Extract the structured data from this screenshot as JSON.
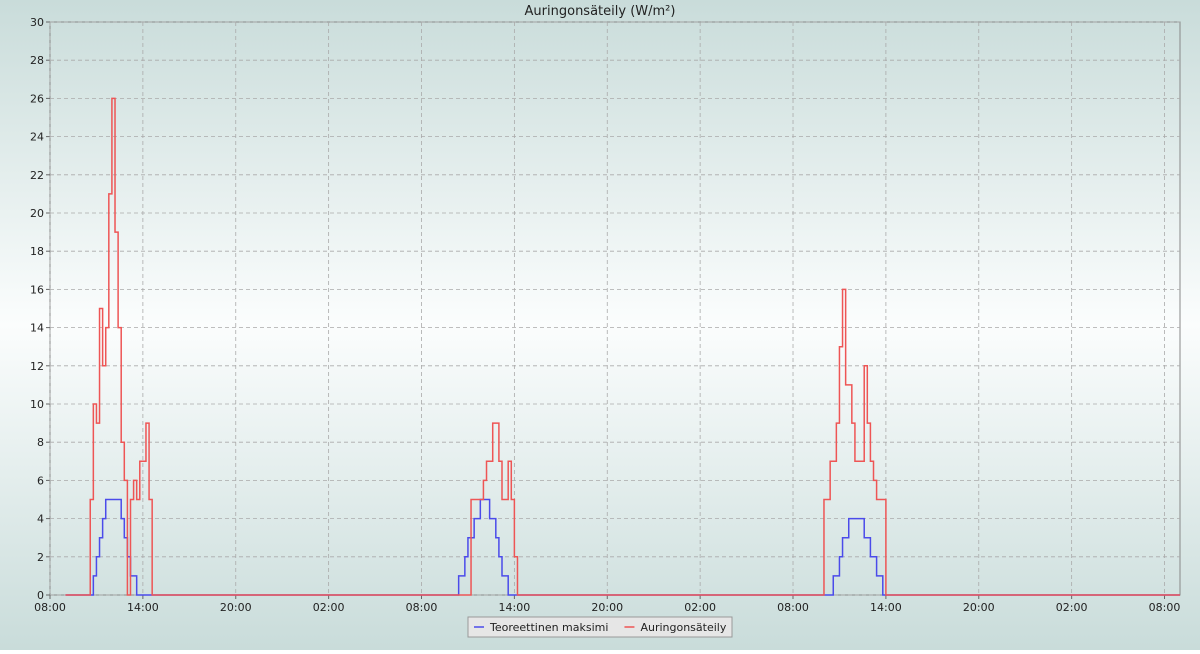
{
  "chart_data": {
    "type": "step-line",
    "title": "Auringonsäteily (W/m²)",
    "x": [
      1,
      2.4,
      2.6,
      2.8,
      3.0,
      3.2,
      3.4,
      3.6,
      3.8,
      4.0,
      4.2,
      4.4,
      4.6,
      4.8,
      5.0,
      5.2,
      5.4,
      5.6,
      5.8,
      6.0,
      6.2,
      6.4,
      6.6,
      26.2,
      26.4,
      26.6,
      26.8,
      27.0,
      27.2,
      27.4,
      27.6,
      27.8,
      28.0,
      28.2,
      28.4,
      28.6,
      28.8,
      29.0,
      29.2,
      29.4,
      29.6,
      29.8,
      30.0,
      30.2,
      49.8,
      50.0,
      50.2,
      50.4,
      50.6,
      50.8,
      51.0,
      51.2,
      51.4,
      51.6,
      51.8,
      52.0,
      52.2,
      52.4,
      52.6,
      52.8,
      53.0,
      53.2,
      53.4,
      53.6,
      53.8,
      54.0,
      73
    ],
    "series": [
      {
        "name": "Teoreettinen maksimi",
        "color": "#4b4bea",
        "values": [
          0,
          0,
          0,
          1,
          2,
          3,
          4,
          5,
          5,
          5,
          5,
          5,
          4,
          3,
          2,
          1,
          1,
          0,
          0,
          0,
          0,
          0,
          0,
          0,
          1,
          1,
          2,
          3,
          3,
          4,
          4,
          5,
          5,
          5,
          4,
          4,
          3,
          2,
          1,
          1,
          0,
          0,
          0,
          0,
          0,
          0,
          0,
          0,
          1,
          1,
          2,
          3,
          3,
          4,
          4,
          4,
          4,
          4,
          3,
          3,
          2,
          2,
          1,
          1,
          0,
          0,
          0
        ]
      },
      {
        "name": "Auringonsäteily",
        "color": "#ee5555",
        "values": [
          0,
          0,
          5,
          10,
          9,
          15,
          12,
          14,
          21,
          26,
          19,
          14,
          8,
          6,
          0,
          5,
          6,
          5,
          7,
          7,
          9,
          5,
          0,
          0,
          0,
          0,
          0,
          0,
          5,
          5,
          5,
          5,
          6,
          7,
          7,
          9,
          9,
          7,
          5,
          5,
          7,
          5,
          2,
          0,
          0,
          5,
          5,
          7,
          7,
          9,
          13,
          16,
          11,
          11,
          9,
          7,
          7,
          7,
          12,
          9,
          7,
          6,
          5,
          5,
          5,
          0,
          0
        ]
      }
    ],
    "xlim": [
      0,
      73
    ],
    "xticks": [
      {
        "value": 0,
        "label": "08:00"
      },
      {
        "value": 6,
        "label": "14:00"
      },
      {
        "value": 12,
        "label": "20:00"
      },
      {
        "value": 18,
        "label": "02:00"
      },
      {
        "value": 24,
        "label": "08:00"
      },
      {
        "value": 30,
        "label": "14:00"
      },
      {
        "value": 36,
        "label": "20:00"
      },
      {
        "value": 42,
        "label": "02:00"
      },
      {
        "value": 48,
        "label": "08:00"
      },
      {
        "value": 54,
        "label": "14:00"
      },
      {
        "value": 60,
        "label": "20:00"
      },
      {
        "value": 66,
        "label": "02:00"
      },
      {
        "value": 72,
        "label": "08:00"
      }
    ],
    "ylim": [
      0,
      30
    ],
    "yticks": [
      0,
      2,
      4,
      6,
      8,
      10,
      12,
      14,
      16,
      18,
      20,
      22,
      24,
      26,
      28,
      30
    ],
    "grid": true,
    "legend": "bottom"
  }
}
